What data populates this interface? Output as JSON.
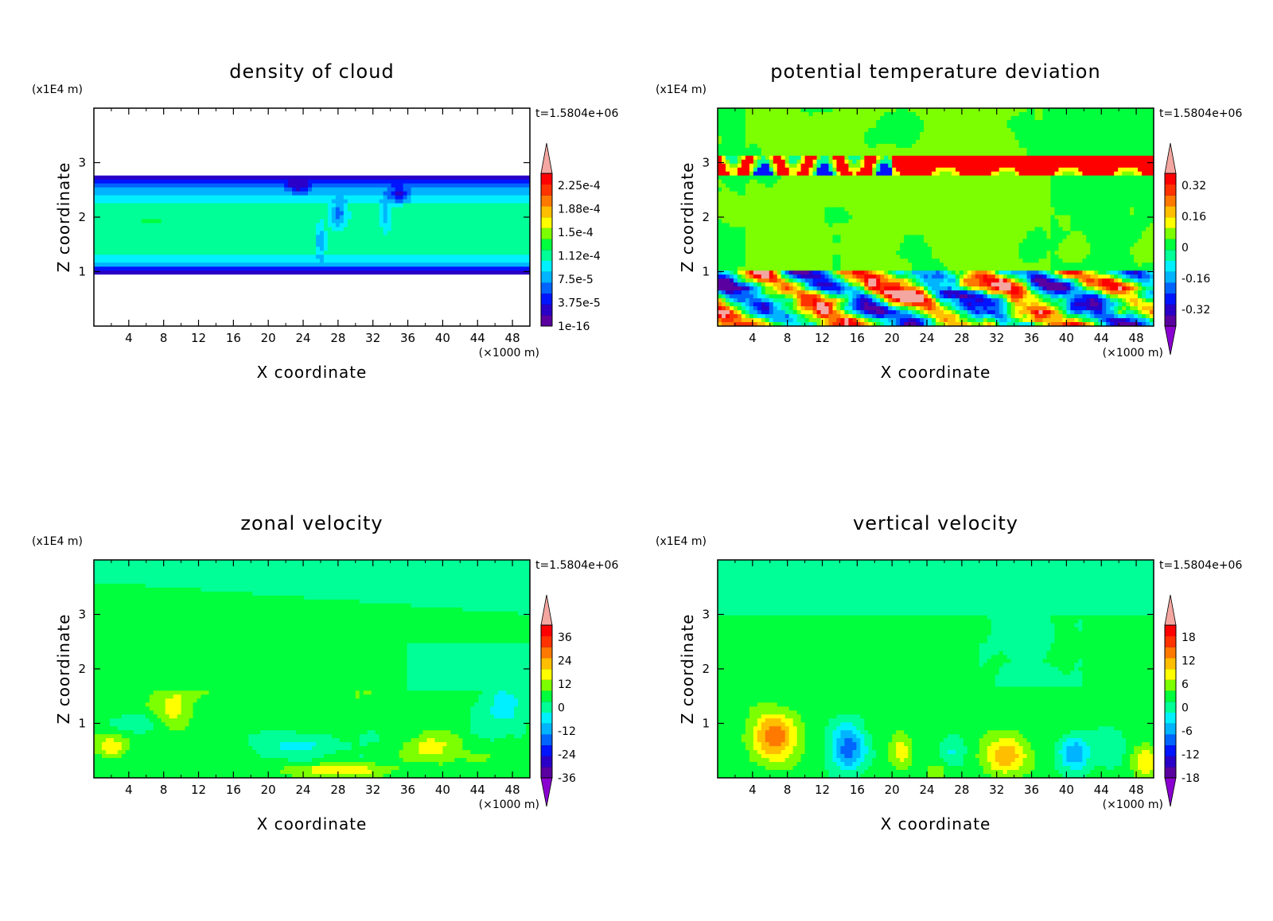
{
  "colors": {
    "frame": "#000000",
    "palette": [
      "#5a00a0",
      "#2a00c8",
      "#0014ff",
      "#0064ff",
      "#00b4ff",
      "#00f0ff",
      "#00ff96",
      "#00ff3c",
      "#7cff00",
      "#ffff00",
      "#ffbe00",
      "#ff7800",
      "#ff3200",
      "#ff0000",
      "#f4a6a0"
    ]
  },
  "chart_data": [
    {
      "type": "heatmap",
      "title": "density of cloud",
      "xlabel": "X coordinate",
      "ylabel": "Z coordinate",
      "x_unit": "(×1000 m)",
      "y_unit": "(x1E4 m)",
      "time_label": "t=1.5804e+06",
      "xlim": [
        0,
        50
      ],
      "ylim": [
        0,
        4
      ],
      "x_ticks": [
        4,
        8,
        12,
        16,
        20,
        24,
        28,
        32,
        36,
        40,
        44,
        48
      ],
      "y_ticks": [
        1,
        2,
        3
      ],
      "colorbar": {
        "labels": [
          "2.25e-4",
          "1.88e-4",
          "1.5e-4",
          "1.12e-4",
          "7.5e-5",
          "3.75e-5",
          "1e-16"
        ],
        "extend_top": true,
        "extend_bottom": false
      }
    },
    {
      "type": "heatmap",
      "title": "potential temperature deviation",
      "xlabel": "X coordinate",
      "ylabel": "Z coordinate",
      "x_unit": "(×1000 m)",
      "y_unit": "(x1E4 m)",
      "time_label": "t=1.5804e+06",
      "xlim": [
        0,
        50
      ],
      "ylim": [
        0,
        4
      ],
      "x_ticks": [
        4,
        8,
        12,
        16,
        20,
        24,
        28,
        32,
        36,
        40,
        44,
        48
      ],
      "y_ticks": [
        1,
        2,
        3
      ],
      "colorbar": {
        "labels": [
          "0.32",
          "0.16",
          "0",
          "-0.16",
          "-0.32"
        ],
        "extend_top": true,
        "extend_bottom": true
      }
    },
    {
      "type": "heatmap",
      "title": "zonal velocity",
      "xlabel": "X coordinate",
      "ylabel": "Z coordinate",
      "x_unit": "(×1000 m)",
      "y_unit": "(x1E4 m)",
      "time_label": "t=1.5804e+06",
      "xlim": [
        0,
        50
      ],
      "ylim": [
        0,
        4
      ],
      "x_ticks": [
        4,
        8,
        12,
        16,
        20,
        24,
        28,
        32,
        36,
        40,
        44,
        48
      ],
      "y_ticks": [
        1,
        2,
        3
      ],
      "colorbar": {
        "labels": [
          "36",
          "24",
          "12",
          "0",
          "-12",
          "-24",
          "-36"
        ],
        "extend_top": true,
        "extend_bottom": true
      }
    },
    {
      "type": "heatmap",
      "title": "vertical velocity",
      "xlabel": "X coordinate",
      "ylabel": "Z coordinate",
      "x_unit": "(×1000 m)",
      "y_unit": "(x1E4 m)",
      "time_label": "t=1.5804e+06",
      "xlim": [
        0,
        50
      ],
      "ylim": [
        0,
        4
      ],
      "x_ticks": [
        4,
        8,
        12,
        16,
        20,
        24,
        28,
        32,
        36,
        40,
        44,
        48
      ],
      "y_ticks": [
        1,
        2,
        3
      ],
      "colorbar": {
        "labels": [
          "18",
          "12",
          "6",
          "0",
          "-6",
          "-12",
          "-18"
        ],
        "extend_top": true,
        "extend_bottom": true
      }
    }
  ]
}
